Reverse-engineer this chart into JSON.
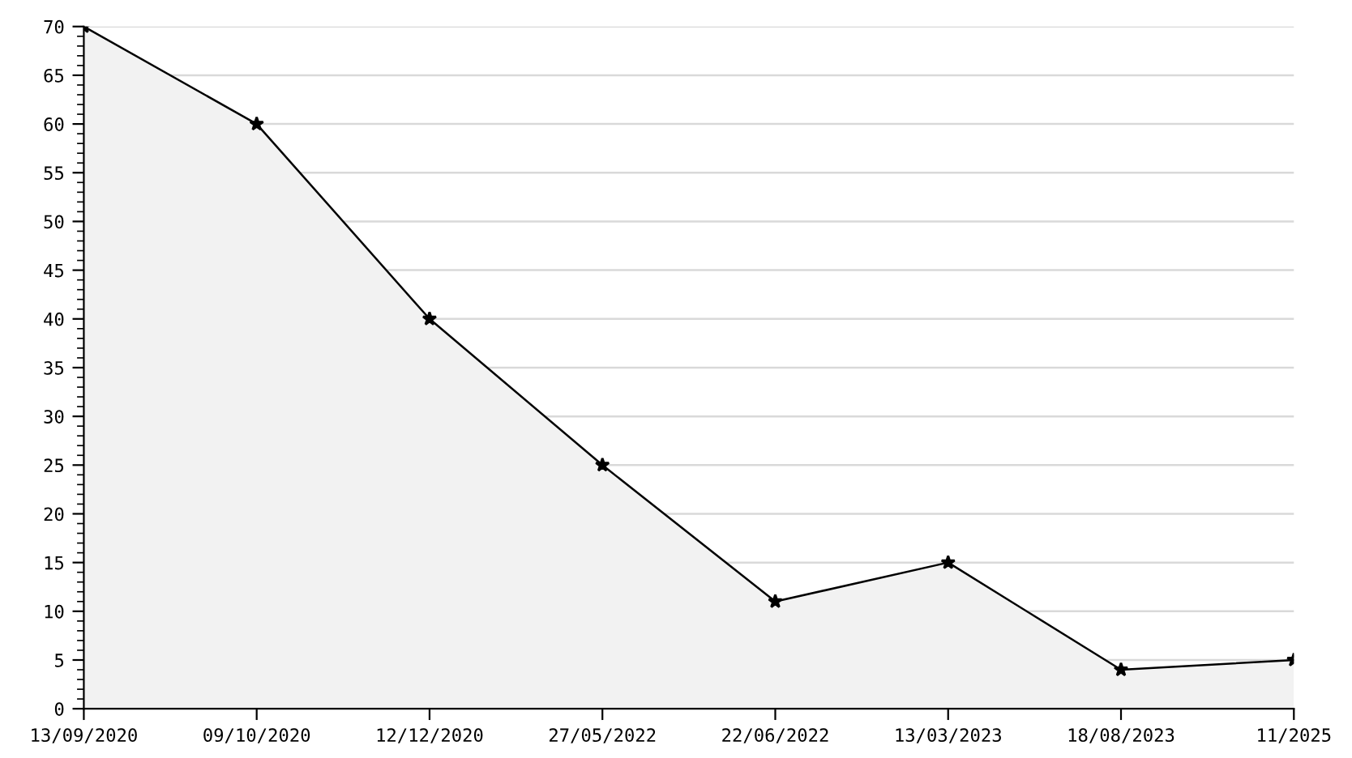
{
  "chart_data": {
    "type": "area",
    "categories": [
      "13/09/2020",
      "09/10/2020",
      "12/12/2020",
      "27/05/2022",
      "22/06/2022",
      "13/03/2023",
      "18/08/2023",
      "11/2025"
    ],
    "series": [
      {
        "color": "#000000",
        "values": [
          70,
          60,
          40,
          25,
          11,
          15,
          4,
          5
        ]
      }
    ],
    "ylim": [
      0,
      70
    ],
    "yticks": [
      0,
      5,
      10,
      15,
      20,
      25,
      30,
      35,
      40,
      45,
      50,
      55,
      60,
      65,
      70
    ],
    "grid": "y",
    "marker": "star",
    "line_style": "solid"
  }
}
